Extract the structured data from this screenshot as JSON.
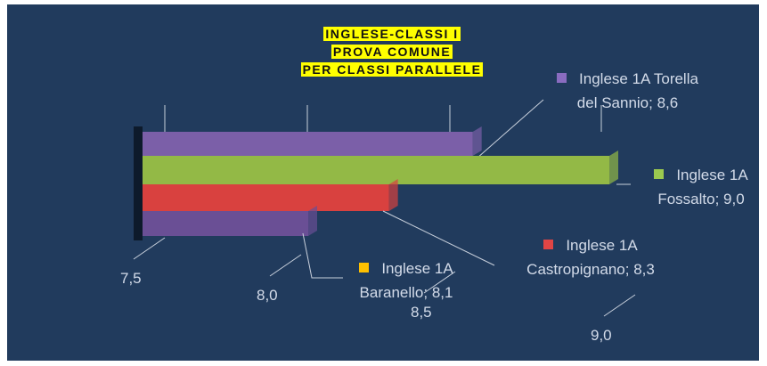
{
  "chart_data": {
    "type": "bar",
    "title": [
      "INGLESE-CLASSI I",
      "PROVA COMUNE",
      "PER CLASSI PARALLELE"
    ],
    "series": [
      {
        "name": "Inglese 1A Torella del Sannio",
        "color": "#7b5fa8",
        "marker_color": "#8a6cc0",
        "values": [
          8.6
        ],
        "value_labels": [
          "Inglese 1A Torella del Sannio; 8,6"
        ]
      },
      {
        "name": "Inglese 1A Fossalto",
        "color": "#93b946",
        "marker_color": "#9bc94f",
        "values": [
          9.0
        ],
        "value_labels": [
          "Inglese 1A Fossalto; 9,0"
        ]
      },
      {
        "name": "Inglese 1A Castropignano",
        "color": "#d9413f",
        "marker_color": "#e04545",
        "values": [
          8.3
        ],
        "value_labels": [
          "Inglese 1A Castropignano; 8,3"
        ]
      },
      {
        "name": "Inglese 1A Baranello",
        "color": "#6a4f95",
        "marker_color": "#ffc000",
        "values": [
          8.1
        ],
        "value_labels": [
          "Inglese 1A Baranello; 8,1"
        ]
      }
    ],
    "xlim": [
      7.5,
      9.0
    ],
    "xticks": [
      {
        "value": 7.5,
        "label": "7,5"
      },
      {
        "value": 8.0,
        "label": "8,0"
      },
      {
        "value": 8.5,
        "label": "8,5"
      },
      {
        "value": 9.0,
        "label": "9,0"
      }
    ]
  }
}
